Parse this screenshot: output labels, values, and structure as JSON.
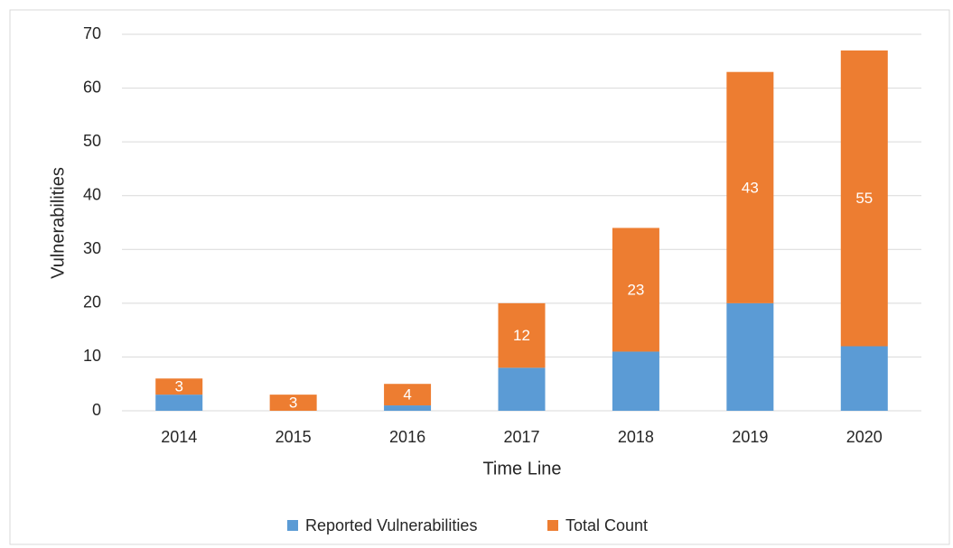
{
  "chart_data": {
    "type": "stacked_bar",
    "categories": [
      "2014",
      "2015",
      "2016",
      "2017",
      "2018",
      "2019",
      "2020"
    ],
    "series": [
      {
        "name": "Reported Vulnerabilities",
        "color": "#5b9bd5",
        "values": [
          3,
          0,
          1,
          8,
          11,
          20,
          12
        ],
        "data_labels": false
      },
      {
        "name": "Total Count",
        "color": "#ed7d31",
        "values": [
          3,
          3,
          4,
          12,
          23,
          43,
          55
        ],
        "data_labels": true
      }
    ],
    "x_label": "Time Line",
    "y_label": "Vulnerabilities",
    "ylim": [
      0,
      70
    ],
    "yticks": [
      0,
      10,
      20,
      30,
      40,
      50,
      60,
      70
    ],
    "grid": true,
    "legend": "bottom"
  }
}
